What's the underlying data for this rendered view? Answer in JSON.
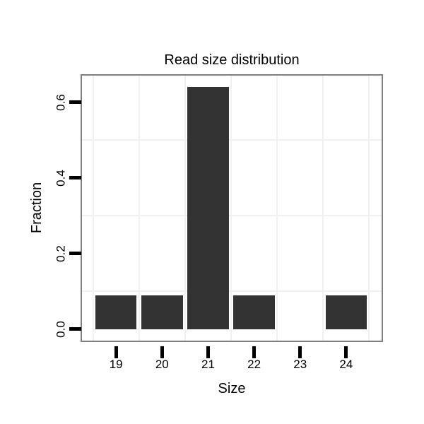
{
  "chart_data": {
    "type": "bar",
    "title": "Read size distribution",
    "xlabel": "Size",
    "ylabel": "Fraction",
    "categories": [
      "19",
      "20",
      "21",
      "22",
      "23",
      "24"
    ],
    "x_values": [
      19,
      20,
      21,
      22,
      23,
      24
    ],
    "values": [
      0.09,
      0.09,
      0.64,
      0.09,
      0.0,
      0.09
    ],
    "ytick_labels": [
      "0.0",
      "0.2",
      "0.4",
      "0.6"
    ],
    "ytick_values": [
      0.0,
      0.2,
      0.4,
      0.6
    ],
    "grid_y_values": [
      0.1,
      0.3,
      0.5
    ],
    "grid_x_values": [
      18.5,
      19.5,
      20.5,
      21.5,
      22.5,
      23.5,
      24.5
    ],
    "xlim": [
      18.26,
      24.77
    ],
    "ylim": [
      -0.03,
      0.67
    ],
    "grid": true,
    "legend": "none",
    "colors": {
      "bar": "#333333",
      "grid": "#f1f1f1",
      "panel_border": "#808080",
      "tick": "#000000",
      "text": "#000000",
      "background": "#ffffff"
    }
  }
}
